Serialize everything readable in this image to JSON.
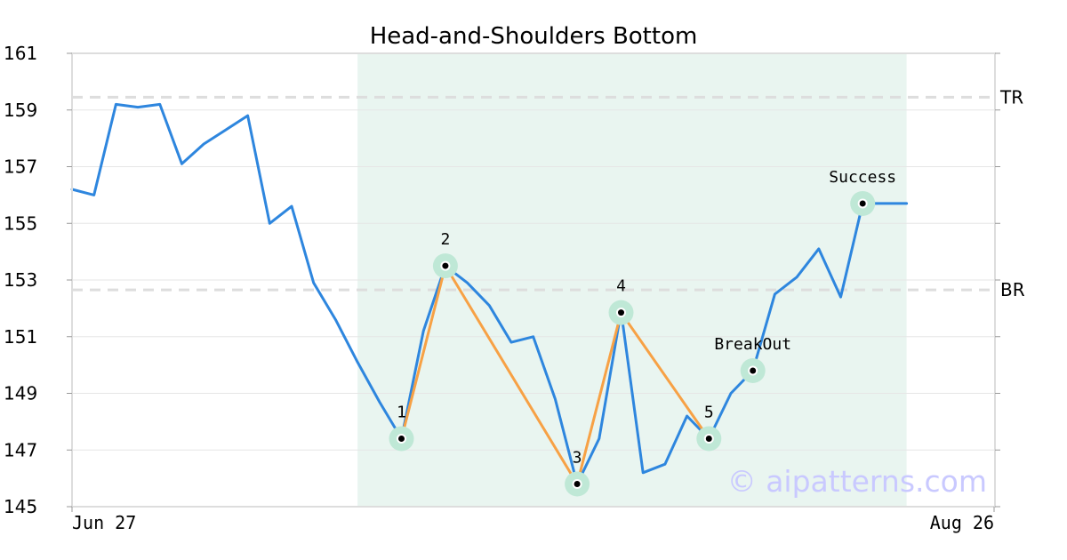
{
  "chart_data": {
    "type": "line",
    "title": "Head-and-Shoulders Bottom",
    "xlabel": "",
    "ylabel": "",
    "ylim": [
      145,
      161
    ],
    "yticks": [
      145,
      147,
      149,
      151,
      153,
      155,
      157,
      159,
      161
    ],
    "x_tick_labels": [
      "Jun 27",
      "Aug 26"
    ],
    "grid": true,
    "colors": {
      "price": "#2e86de",
      "pattern": "#f7a145",
      "highlight": "#e9f5f0",
      "marker_halo": "#bfe8d6",
      "reference": "#dddddd",
      "watermark": "#c9c9ff"
    },
    "series": [
      {
        "values": [
          156.2,
          156.0,
          159.2,
          159.1,
          159.2,
          157.1,
          157.8,
          158.3,
          158.8,
          155.0,
          155.6,
          152.9,
          151.6,
          150.1,
          148.7,
          147.4,
          151.2,
          153.5,
          152.9,
          152.1,
          150.8,
          151.0,
          148.8,
          145.8,
          147.4,
          151.9,
          146.2,
          146.5,
          148.2,
          147.4,
          149.0,
          149.8,
          152.5,
          153.1,
          154.1,
          152.4,
          155.7,
          155.7,
          155.7
        ]
      }
    ],
    "pattern_points": [
      {
        "label": "1",
        "index": 15,
        "value": 147.4
      },
      {
        "label": "2",
        "index": 17,
        "value": 153.5
      },
      {
        "label": "3",
        "index": 23,
        "value": 145.8
      },
      {
        "label": "4",
        "index": 25,
        "value": 151.85
      },
      {
        "label": "5",
        "index": 29,
        "value": 147.4
      }
    ],
    "markers": [
      {
        "label": "BreakOut",
        "index": 31,
        "value": 149.8
      },
      {
        "label": "Success",
        "index": 36,
        "value": 155.7
      }
    ],
    "reference_lines": [
      {
        "label": "TR",
        "value": 159.45
      },
      {
        "label": "BR",
        "value": 152.65
      }
    ],
    "highlight_range": {
      "start_index": 13,
      "end_index": 38
    },
    "watermark": "© aipatterns.com"
  }
}
